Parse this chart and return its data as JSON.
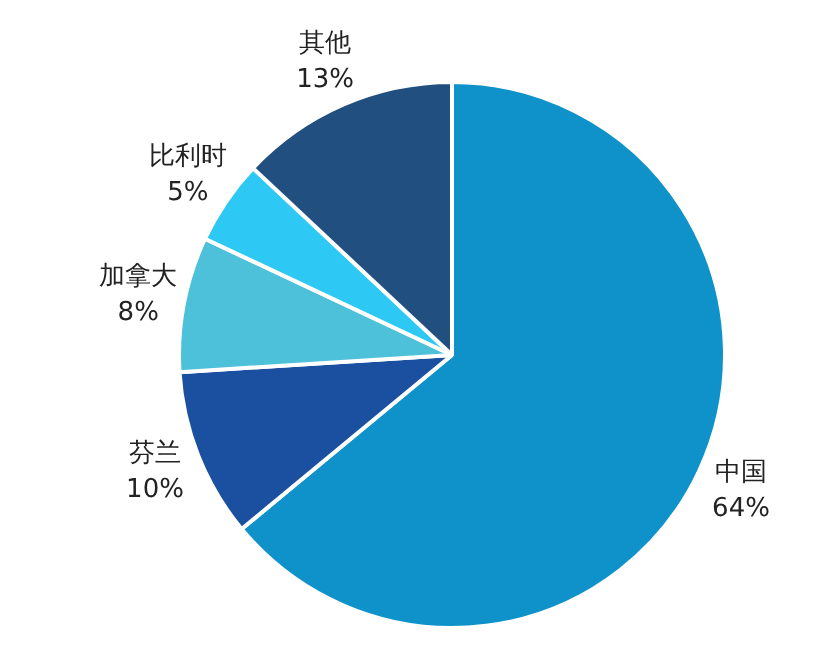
{
  "chart_data": {
    "type": "pie",
    "categories": [
      "中国",
      "芬兰",
      "加拿大",
      "比利时",
      "其他"
    ],
    "values": [
      64,
      10,
      8,
      5,
      13
    ],
    "colors": [
      "#0e92c9",
      "#1b4f9f",
      "#4dc1da",
      "#2ec8f5",
      "#214f7f"
    ],
    "value_labels": [
      "64%",
      "10%",
      "8%",
      "5%",
      "13%"
    ],
    "legend": false
  }
}
